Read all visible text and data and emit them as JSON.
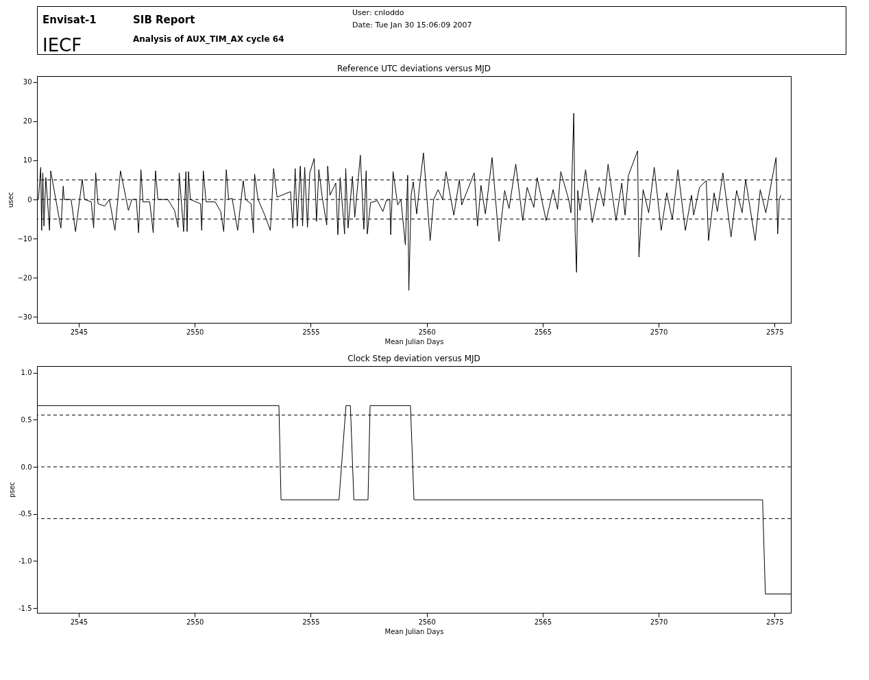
{
  "chart_data": [
    {
      "type": "line",
      "title": "Reference UTC deviations versus MJD",
      "xlabel": "Mean Julian Days",
      "ylabel": "usec",
      "annotations": [
        "Envisat-1",
        "SIB Report",
        "User: cnloddo",
        "Date: Tue Jan 30 15:06:09 2007",
        "IECF",
        "Analysis of AUX_TIM_AX  cycle 64"
      ],
      "xlim": [
        2543.2,
        2575.7
      ],
      "ylim": [
        -31.5,
        31.5
      ],
      "xticks": [
        2545,
        2550,
        2555,
        2560,
        2565,
        2570,
        2575
      ],
      "yticks": [
        -30,
        -20,
        -10,
        0,
        10,
        20,
        30
      ],
      "grid": false,
      "marker": "none",
      "line_style": "solid",
      "ref_lines": [
        {
          "axis": "y",
          "value": 5,
          "line_style": "dashed"
        },
        {
          "axis": "y",
          "value": 0,
          "line_style": "dashed"
        },
        {
          "axis": "y",
          "value": -5,
          "line_style": "dashed"
        }
      ],
      "series": [
        {
          "color": "#000000",
          "x": [
            2543.26,
            2543.36,
            2543.4,
            2543.45,
            2543.5,
            2543.58,
            2543.65,
            2543.74,
            2543.79,
            2544.23,
            2544.33,
            2544.37,
            2544.67,
            2544.86,
            2545.15,
            2545.25,
            2545.54,
            2545.64,
            2545.73,
            2545.83,
            2546.12,
            2546.32,
            2546.56,
            2546.8,
            2547.14,
            2547.29,
            2547.48,
            2547.58,
            2547.68,
            2547.77,
            2548.06,
            2548.21,
            2548.31,
            2548.41,
            2548.84,
            2549.13,
            2549.28,
            2549.33,
            2549.52,
            2549.62,
            2549.67,
            2549.73,
            2549.81,
            2550.25,
            2550.3,
            2550.37,
            2550.49,
            2550.88,
            2551.12,
            2551.25,
            2551.36,
            2551.46,
            2551.61,
            2551.85,
            2552.09,
            2552.19,
            2552.43,
            2552.53,
            2552.58,
            2552.73,
            2553.02,
            2553.26,
            2553.4,
            2553.55,
            2554.13,
            2554.23,
            2554.33,
            2554.42,
            2554.55,
            2554.65,
            2554.74,
            2554.86,
            2554.96,
            2555.15,
            2555.25,
            2555.35,
            2555.49,
            2555.69,
            2555.73,
            2555.83,
            2556.08,
            2556.17,
            2556.27,
            2556.46,
            2556.51,
            2556.61,
            2556.8,
            2556.9,
            2557.14,
            2557.29,
            2557.39,
            2557.44,
            2557.58,
            2557.87,
            2558.11,
            2558.26,
            2558.41,
            2558.45,
            2558.55,
            2558.75,
            2558.89,
            2559.08,
            2559.18,
            2559.23,
            2559.33,
            2559.42,
            2559.57,
            2559.67,
            2559.86,
            2560.15,
            2560.3,
            2560.49,
            2560.69,
            2560.83,
            2561.17,
            2561.41,
            2561.51,
            2562.05,
            2562.19,
            2562.34,
            2562.53,
            2562.82,
            2563.12,
            2563.36,
            2563.55,
            2563.84,
            2564.14,
            2564.33,
            2564.62,
            2564.76,
            2565.15,
            2565.45,
            2565.64,
            2565.78,
            2566.12,
            2566.22,
            2566.34,
            2566.4,
            2566.46,
            2566.51,
            2566.61,
            2566.85,
            2567.14,
            2567.44,
            2567.63,
            2567.82,
            2568.16,
            2568.41,
            2568.55,
            2568.7,
            2569.09,
            2569.15,
            2569.33,
            2569.57,
            2569.81,
            2570.11,
            2570.35,
            2570.59,
            2570.83,
            2571.15,
            2571.42,
            2571.51,
            2571.76,
            2572.05,
            2572.15,
            2572.39,
            2572.53,
            2572.77,
            2573.12,
            2573.36,
            2573.6,
            2573.75,
            2574.16,
            2574.38,
            2574.62,
            2575.06,
            2575.13,
            2575.2,
            2575.27
          ],
          "values": [
            0,
            8.2,
            -7.9,
            6.8,
            -6.8,
            5.6,
            0,
            -7.9,
            7.3,
            -7.3,
            3.4,
            0,
            0,
            -8.2,
            5.1,
            0,
            -0.6,
            -7.3,
            6.8,
            -1.1,
            -1.7,
            0,
            -7.9,
            7.3,
            -2.8,
            0,
            0,
            -8.5,
            7.6,
            -0.6,
            -0.6,
            -8.5,
            7.3,
            0,
            0,
            -2.8,
            -7.1,
            6.8,
            -8.2,
            7.1,
            -8.2,
            7.1,
            0,
            -1.1,
            -7.9,
            7.3,
            -0.6,
            -0.6,
            -3.1,
            -8.2,
            7.6,
            0,
            0.3,
            -7.9,
            4.8,
            0,
            -1.1,
            -8.5,
            6.5,
            0,
            -4.0,
            -7.9,
            7.9,
            0.6,
            2.0,
            -7.3,
            7.9,
            -6.8,
            8.5,
            -6.8,
            8.2,
            -7.1,
            6.8,
            10.5,
            -5.6,
            7.6,
            0.8,
            -6.5,
            8.5,
            1.1,
            4.2,
            -9.0,
            5.6,
            -8.8,
            7.9,
            -7.3,
            5.9,
            -4.5,
            11.3,
            -7.6,
            7.3,
            -8.8,
            -0.8,
            -0.3,
            -3.1,
            -0.3,
            0,
            -9.0,
            7.1,
            -1.4,
            0,
            -11.6,
            6.2,
            -23.2,
            1.1,
            4.5,
            -3.7,
            2.3,
            11.9,
            -10.5,
            0,
            2.5,
            0,
            7.1,
            -4.0,
            5.1,
            -1.4,
            6.8,
            -6.8,
            3.6,
            -3.7,
            10.7,
            -10.7,
            2.3,
            -2.3,
            9.0,
            -5.4,
            3.1,
            -2.0,
            5.6,
            -5.4,
            2.5,
            -2.5,
            7.1,
            0,
            -3.4,
            22.0,
            -8.5,
            -18.6,
            2.3,
            -2.8,
            7.6,
            -5.9,
            3.1,
            -1.7,
            9.0,
            -5.4,
            4.2,
            -4.0,
            6.2,
            12.4,
            -14.7,
            2.5,
            -3.4,
            8.2,
            -7.9,
            1.7,
            -5.1,
            7.6,
            -7.9,
            1.1,
            -4.0,
            3.1,
            4.8,
            -10.5,
            1.7,
            -3.1,
            6.8,
            -9.6,
            2.3,
            -3.4,
            5.1,
            -10.5,
            2.5,
            -3.4,
            10.7,
            -8.8,
            0,
            1.1
          ]
        }
      ]
    },
    {
      "type": "line",
      "title": "Clock Step deviation versus MJD",
      "xlabel": "Mean Julian Days",
      "ylabel": "psec",
      "xlim": [
        2543.2,
        2575.7
      ],
      "ylim": [
        -1.55,
        1.07
      ],
      "xticks": [
        2545,
        2550,
        2555,
        2560,
        2565,
        2570,
        2575
      ],
      "yticks": [
        {
          "value": -1.5,
          "label": "-1.5"
        },
        {
          "value": -1,
          "label": "-1.0"
        },
        {
          "value": -0.5,
          "label": "-0.5"
        },
        {
          "value": 0,
          "label": "0.0"
        },
        {
          "value": 0.5,
          "label": "0.5"
        },
        {
          "value": 1,
          "label": "1.0"
        }
      ],
      "grid": false,
      "marker": "none",
      "line_style": "solid",
      "ref_lines": [
        {
          "axis": "y",
          "value": 0.55,
          "line_style": "dashed"
        },
        {
          "axis": "y",
          "value": 0,
          "line_style": "dashed"
        },
        {
          "axis": "y",
          "value": -0.55,
          "line_style": "dashed"
        }
      ],
      "series": [
        {
          "color": "#000000",
          "x": [
            2543.2,
            2553.63,
            2553.72,
            2556.22,
            2556.52,
            2556.71,
            2556.86,
            2557.47,
            2557.56,
            2559.3,
            2559.45,
            2574.48,
            2574.6,
            2575.7
          ],
          "values": [
            0.65,
            0.65,
            -0.35,
            -0.35,
            0.65,
            0.65,
            -0.35,
            -0.35,
            0.65,
            0.65,
            -0.35,
            -0.35,
            -1.35,
            -1.35
          ]
        }
      ]
    }
  ]
}
